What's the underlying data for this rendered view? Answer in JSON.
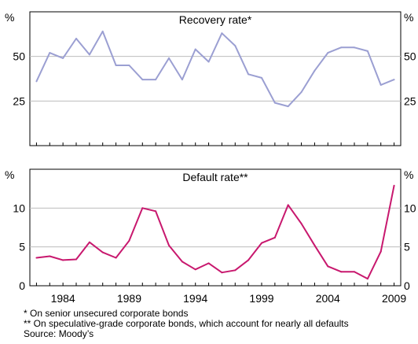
{
  "chart_data": [
    {
      "type": "line",
      "title": "Recovery rate*",
      "unit_left": "%",
      "unit_right": "%",
      "ylim": [
        0,
        75
      ],
      "yticks": [
        25,
        50
      ],
      "color": "#9b9fd2",
      "x": [
        1982,
        1983,
        1984,
        1985,
        1986,
        1987,
        1988,
        1989,
        1990,
        1991,
        1992,
        1993,
        1994,
        1995,
        1996,
        1997,
        1998,
        1999,
        2000,
        2001,
        2002,
        2003,
        2004,
        2005,
        2006,
        2007,
        2008,
        2009
      ],
      "values": [
        36,
        52,
        49,
        60,
        51,
        64,
        45,
        45,
        37,
        37,
        49,
        37,
        54,
        47,
        63,
        56,
        40,
        38,
        24,
        22,
        30,
        42,
        52,
        55,
        55,
        53,
        34,
        37
      ]
    },
    {
      "type": "line",
      "title": "Default rate**",
      "unit_left": "%",
      "unit_right": "%",
      "ylim": [
        0,
        15
      ],
      "yticks": [
        0,
        5,
        10
      ],
      "color": "#c8186e",
      "x": [
        1982,
        1983,
        1984,
        1985,
        1986,
        1987,
        1988,
        1989,
        1990,
        1991,
        1992,
        1993,
        1994,
        1995,
        1996,
        1997,
        1998,
        1999,
        2000,
        2001,
        2002,
        2003,
        2004,
        2005,
        2006,
        2007,
        2008,
        2009
      ],
      "values": [
        3.6,
        3.8,
        3.3,
        3.4,
        5.6,
        4.3,
        3.6,
        5.8,
        10.0,
        9.6,
        5.2,
        3.1,
        2.1,
        2.9,
        1.7,
        2.0,
        3.3,
        5.5,
        6.2,
        10.4,
        8.0,
        5.2,
        2.5,
        1.8,
        1.8,
        0.9,
        4.4,
        12.9
      ]
    }
  ],
  "x_axis": {
    "min": 1982,
    "max": 2009,
    "tick_labels": [
      "1984",
      "1989",
      "1994",
      "1999",
      "2004",
      "2009"
    ],
    "tick_years": [
      1984,
      1989,
      1994,
      1999,
      2004,
      2009
    ]
  },
  "notes": [
    "*   On senior unsecured corporate bonds",
    "** On speculative-grade corporate bonds, which account for nearly all defaults",
    "Source: Moody’s"
  ]
}
